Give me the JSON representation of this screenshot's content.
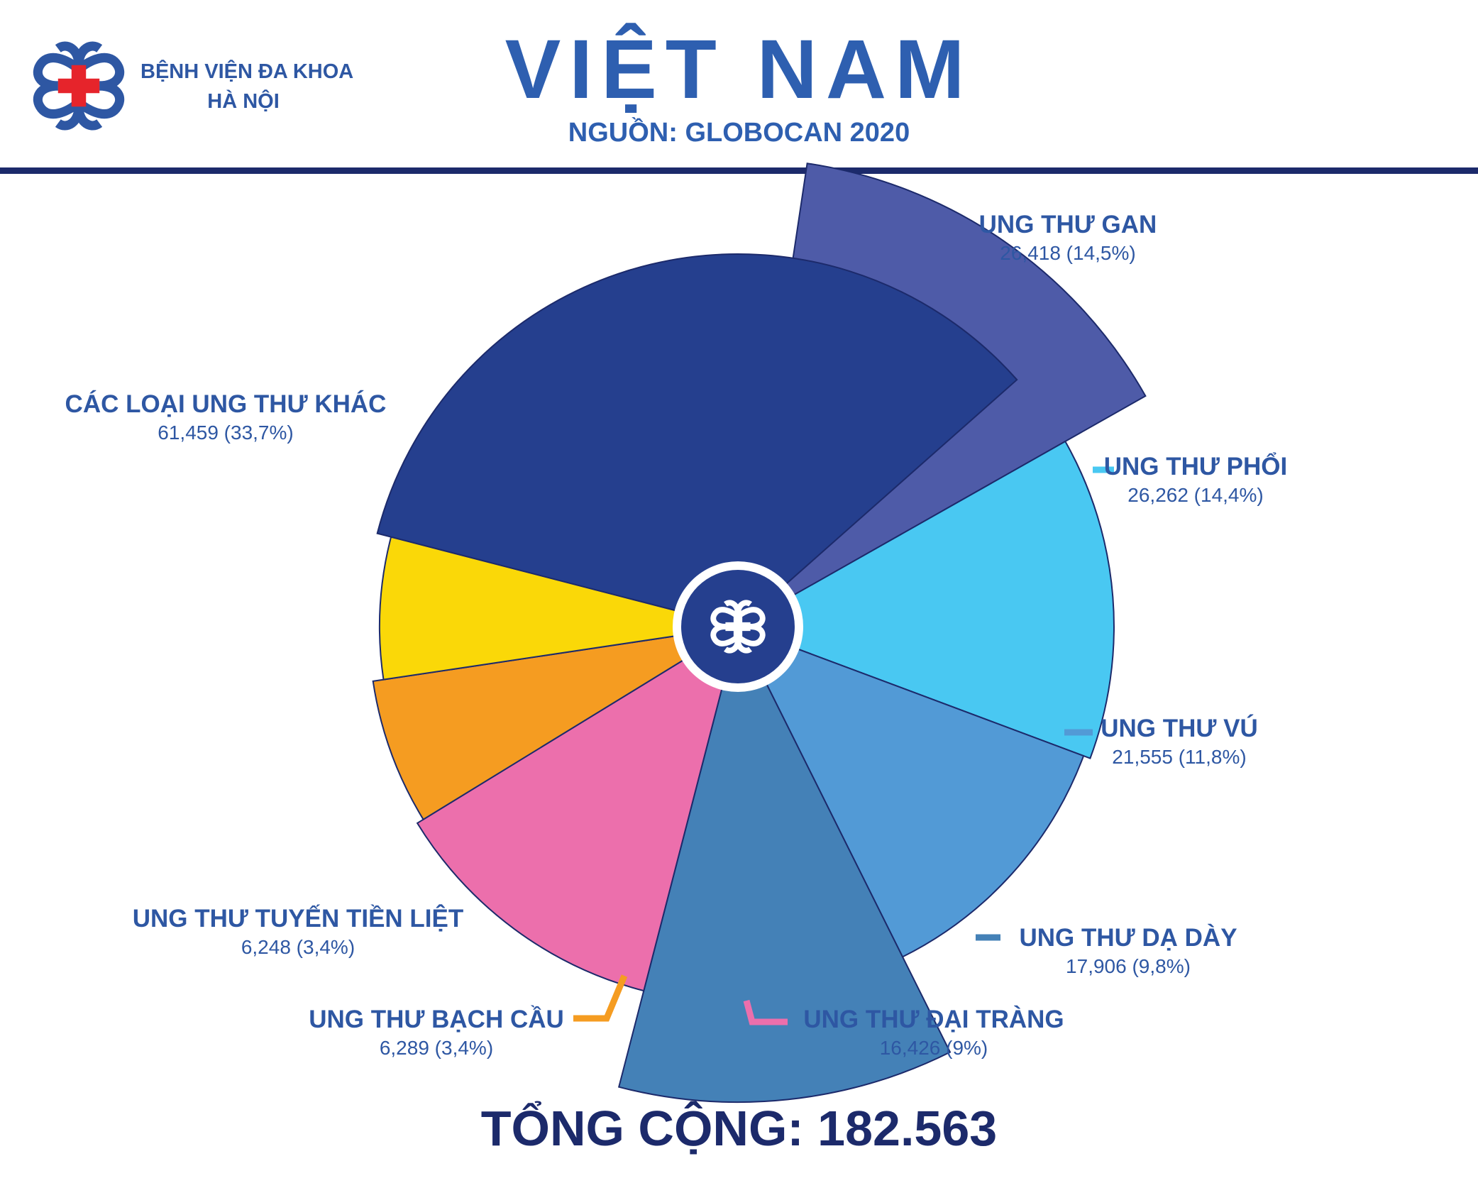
{
  "brand": {
    "line1": "BỆNH VIỆN ĐA KHOA",
    "line2": "HÀ NỘI",
    "logo_icon": "hospital-cross-logo",
    "colors": {
      "primary": "#2e57a3",
      "cross": "#e6242b"
    }
  },
  "header": {
    "title": "VIỆT NAM",
    "source": "NGUỒN: GLOBOCAN 2020"
  },
  "chart_data": {
    "type": "pie",
    "title": "VIỆT NAM",
    "variant": "pie with radius varying per slice",
    "slices": [
      {
        "label": "UNG THƯ GAN",
        "value": 26418,
        "value_text": "26,418 (14,5%)",
        "percent": 14.5,
        "color": "#4e5ba8"
      },
      {
        "label": "UNG THƯ PHỔI",
        "value": 26262,
        "value_text": "26,262 (14,4%)",
        "percent": 14.4,
        "color": "#49c8f2"
      },
      {
        "label": "UNG THƯ VÚ",
        "value": 21555,
        "value_text": "21,555 (11,8%)",
        "percent": 11.8,
        "color": "#529ad6"
      },
      {
        "label": "UNG THƯ DẠ DÀY",
        "value": 17906,
        "value_text": "17,906 (9,8%)",
        "percent": 9.8,
        "color": "#4481b7"
      },
      {
        "label": "UNG THƯ ĐẠI TRÀNG",
        "value": 16426,
        "value_text": "16,426 (9%)",
        "percent": 9,
        "color": "#ec6fac"
      },
      {
        "label": "UNG THƯ BẠCH CẦU",
        "value": 6289,
        "value_text": "6,289 (3,4%)",
        "percent": 3.4,
        "color": "#f59c21"
      },
      {
        "label": "UNG THƯ TUYẾN TIỀN LIỆT",
        "value": 6248,
        "value_text": "6,248 (3,4%)",
        "percent": 3.4,
        "color": "#fad808"
      },
      {
        "label": "CÁC LOẠI UNG THƯ KHÁC",
        "value": 61459,
        "value_text": "61,459 (33,7%)",
        "percent": 33.7,
        "color": "#253f8e"
      }
    ],
    "center_icon": "hospital-cross-logo"
  },
  "footer": {
    "total": "TỔNG CỘNG: 182.563"
  }
}
